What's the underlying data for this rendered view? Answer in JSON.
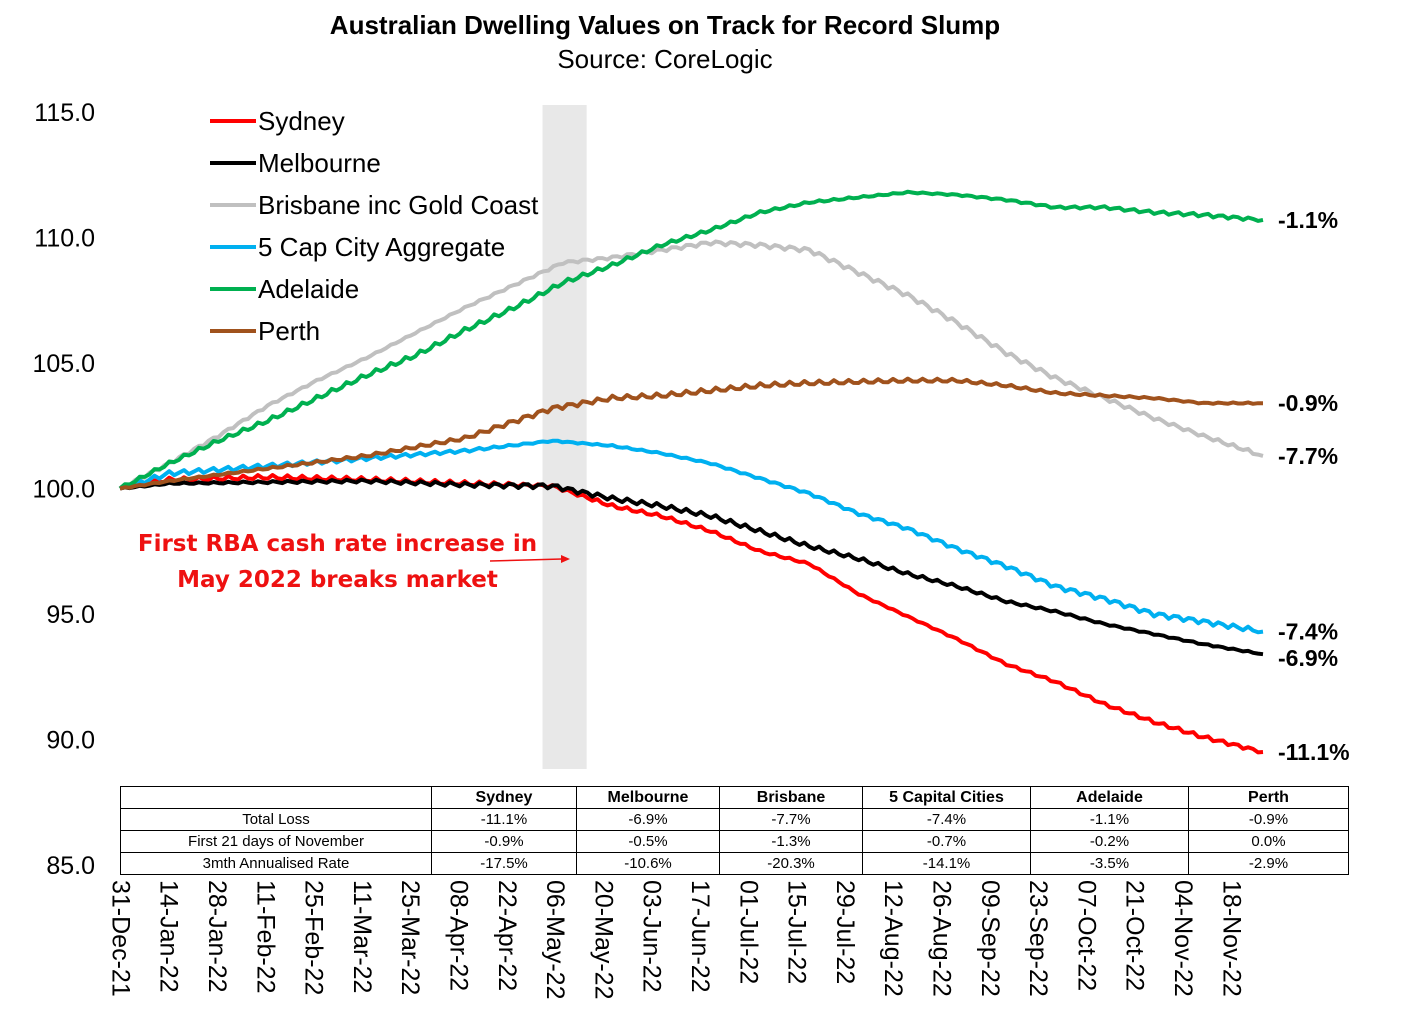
{
  "chart_data": {
    "type": "line",
    "title": "Australian Dwelling Values on Track for Record Slump",
    "subtitle": "Source: CoreLogic",
    "xlabel": "",
    "ylabel": "",
    "ylim": [
      85,
      115
    ],
    "y_ticks": [
      "115.0",
      "110.0",
      "105.0",
      "100.0",
      "95.0",
      "90.0",
      "85.0"
    ],
    "x_ticks": [
      "31-Dec-21",
      "14-Jan-22",
      "28-Jan-22",
      "11-Feb-22",
      "25-Feb-22",
      "11-Mar-22",
      "25-Mar-22",
      "08-Apr-22",
      "22-Apr-22",
      "06-May-22",
      "20-May-22",
      "03-Jun-22",
      "17-Jun-22",
      "01-Jul-22",
      "15-Jul-22",
      "29-Jul-22",
      "12-Aug-22",
      "26-Aug-22",
      "09-Sep-22",
      "23-Sep-22",
      "07-Oct-22",
      "21-Oct-22",
      "04-Nov-22",
      "18-Nov-22"
    ],
    "x_range": [
      "2021-12-31",
      "2022-11-21"
    ],
    "grid": false,
    "legend_position": "top-left",
    "shaded_period": [
      "2022-05-01",
      "2022-05-07"
    ],
    "annotation": {
      "text_lines": [
        "First RBA cash rate increase in",
        "May 2022 breaks market"
      ],
      "color": "#ee1111",
      "points_to": "2022-05-03"
    },
    "series": [
      {
        "name": "Sydney",
        "color": "#ff0000",
        "end_label": "-11.1%",
        "points": [
          [
            "2021-12-31",
            100.0
          ],
          [
            "2022-01-14",
            100.35
          ],
          [
            "2022-02-11",
            100.45
          ],
          [
            "2022-03-11",
            100.35
          ],
          [
            "2022-04-08",
            100.2
          ],
          [
            "2022-05-03",
            100.1
          ],
          [
            "2022-05-20",
            99.3
          ],
          [
            "2022-06-03",
            98.9
          ],
          [
            "2022-06-17",
            98.3
          ],
          [
            "2022-07-01",
            97.5
          ],
          [
            "2022-07-15",
            97.0
          ],
          [
            "2022-07-29",
            95.8
          ],
          [
            "2022-08-12",
            94.9
          ],
          [
            "2022-08-26",
            94.0
          ],
          [
            "2022-09-09",
            93.0
          ],
          [
            "2022-09-23",
            92.3
          ],
          [
            "2022-10-07",
            91.4
          ],
          [
            "2022-10-21",
            90.7
          ],
          [
            "2022-11-04",
            90.1
          ],
          [
            "2022-11-21",
            89.5
          ]
        ]
      },
      {
        "name": "Melbourne",
        "color": "#000000",
        "end_label": "-6.9%",
        "points": [
          [
            "2021-12-31",
            100.0
          ],
          [
            "2022-01-14",
            100.2
          ],
          [
            "2022-02-11",
            100.25
          ],
          [
            "2022-03-11",
            100.3
          ],
          [
            "2022-04-08",
            100.15
          ],
          [
            "2022-05-03",
            100.1
          ],
          [
            "2022-05-20",
            99.6
          ],
          [
            "2022-06-03",
            99.3
          ],
          [
            "2022-06-17",
            98.9
          ],
          [
            "2022-07-01",
            98.3
          ],
          [
            "2022-07-15",
            97.7
          ],
          [
            "2022-07-29",
            97.2
          ],
          [
            "2022-08-12",
            96.6
          ],
          [
            "2022-08-26",
            96.1
          ],
          [
            "2022-09-09",
            95.5
          ],
          [
            "2022-09-23",
            95.1
          ],
          [
            "2022-10-07",
            94.6
          ],
          [
            "2022-10-21",
            94.2
          ],
          [
            "2022-11-04",
            93.8
          ],
          [
            "2022-11-21",
            93.4
          ]
        ]
      },
      {
        "name": "Brisbane inc Gold Coast",
        "color": "#c0c0c0",
        "end_label": "-7.7%",
        "points": [
          [
            "2021-12-31",
            100.0
          ],
          [
            "2022-01-14",
            101.0
          ],
          [
            "2022-01-28",
            102.1
          ],
          [
            "2022-02-11",
            103.3
          ],
          [
            "2022-02-25",
            104.3
          ],
          [
            "2022-03-11",
            105.2
          ],
          [
            "2022-03-25",
            106.2
          ],
          [
            "2022-04-08",
            107.2
          ],
          [
            "2022-04-22",
            108.1
          ],
          [
            "2022-05-06",
            109.0
          ],
          [
            "2022-05-20",
            109.2
          ],
          [
            "2022-06-03",
            109.5
          ],
          [
            "2022-06-17",
            109.8
          ],
          [
            "2022-07-01",
            109.7
          ],
          [
            "2022-07-15",
            109.5
          ],
          [
            "2022-07-29",
            108.6
          ],
          [
            "2022-08-12",
            107.7
          ],
          [
            "2022-08-26",
            106.6
          ],
          [
            "2022-09-09",
            105.4
          ],
          [
            "2022-09-23",
            104.4
          ],
          [
            "2022-10-07",
            103.6
          ],
          [
            "2022-10-21",
            102.8
          ],
          [
            "2022-11-04",
            102.1
          ],
          [
            "2022-11-21",
            101.3
          ]
        ]
      },
      {
        "name": "5 Cap City Aggregate",
        "color": "#00b0f0",
        "end_label": "-7.4%",
        "points": [
          [
            "2021-12-31",
            100.0
          ],
          [
            "2022-01-14",
            100.6
          ],
          [
            "2022-02-11",
            100.9
          ],
          [
            "2022-03-11",
            101.2
          ],
          [
            "2022-04-08",
            101.5
          ],
          [
            "2022-05-03",
            101.9
          ],
          [
            "2022-05-20",
            101.7
          ],
          [
            "2022-06-03",
            101.4
          ],
          [
            "2022-06-17",
            101.0
          ],
          [
            "2022-07-01",
            100.4
          ],
          [
            "2022-07-15",
            99.8
          ],
          [
            "2022-07-29",
            99.0
          ],
          [
            "2022-08-12",
            98.4
          ],
          [
            "2022-08-26",
            97.6
          ],
          [
            "2022-09-09",
            96.9
          ],
          [
            "2022-09-23",
            96.1
          ],
          [
            "2022-10-07",
            95.6
          ],
          [
            "2022-10-21",
            95.0
          ],
          [
            "2022-11-04",
            94.7
          ],
          [
            "2022-11-21",
            94.3
          ]
        ]
      },
      {
        "name": "Adelaide",
        "color": "#00b050",
        "end_label": "-1.1%",
        "points": [
          [
            "2021-12-31",
            100.0
          ],
          [
            "2022-01-14",
            101.0
          ],
          [
            "2022-01-28",
            101.9
          ],
          [
            "2022-02-11",
            102.7
          ],
          [
            "2022-02-25",
            103.6
          ],
          [
            "2022-03-11",
            104.5
          ],
          [
            "2022-03-25",
            105.3
          ],
          [
            "2022-04-08",
            106.3
          ],
          [
            "2022-04-22",
            107.2
          ],
          [
            "2022-05-06",
            108.2
          ],
          [
            "2022-05-20",
            108.9
          ],
          [
            "2022-06-03",
            109.7
          ],
          [
            "2022-06-17",
            110.3
          ],
          [
            "2022-07-01",
            111.0
          ],
          [
            "2022-07-15",
            111.4
          ],
          [
            "2022-07-29",
            111.6
          ],
          [
            "2022-08-12",
            111.8
          ],
          [
            "2022-08-26",
            111.7
          ],
          [
            "2022-09-09",
            111.5
          ],
          [
            "2022-09-23",
            111.2
          ],
          [
            "2022-10-07",
            111.2
          ],
          [
            "2022-10-21",
            111.0
          ],
          [
            "2022-11-04",
            110.9
          ],
          [
            "2022-11-21",
            110.7
          ]
        ]
      },
      {
        "name": "Perth",
        "color": "#a0521d",
        "end_label": "-0.9%",
        "points": [
          [
            "2021-12-31",
            100.0
          ],
          [
            "2022-01-14",
            100.3
          ],
          [
            "2022-02-11",
            100.8
          ],
          [
            "2022-03-11",
            101.3
          ],
          [
            "2022-04-08",
            102.0
          ],
          [
            "2022-05-03",
            103.2
          ],
          [
            "2022-05-20",
            103.6
          ],
          [
            "2022-06-03",
            103.7
          ],
          [
            "2022-06-17",
            103.9
          ],
          [
            "2022-07-01",
            104.1
          ],
          [
            "2022-07-15",
            104.2
          ],
          [
            "2022-07-29",
            104.25
          ],
          [
            "2022-08-12",
            104.3
          ],
          [
            "2022-08-26",
            104.3
          ],
          [
            "2022-09-09",
            104.1
          ],
          [
            "2022-09-23",
            103.8
          ],
          [
            "2022-10-07",
            103.7
          ],
          [
            "2022-10-21",
            103.6
          ],
          [
            "2022-11-04",
            103.4
          ],
          [
            "2022-11-21",
            103.4
          ]
        ]
      }
    ]
  },
  "table": {
    "headers": [
      "",
      "Sydney",
      "Melbourne",
      "Brisbane",
      "5 Capital Cities",
      "Adelaide",
      "Perth"
    ],
    "rows": [
      [
        "Total Loss",
        "-11.1%",
        "-6.9%",
        "-7.7%",
        "-7.4%",
        "-1.1%",
        "-0.9%"
      ],
      [
        "First 21 days of November",
        "-0.9%",
        "-0.5%",
        "-1.3%",
        "-0.7%",
        "-0.2%",
        "0.0%"
      ],
      [
        "3mth Annualised Rate",
        "-17.5%",
        "-10.6%",
        "-20.3%",
        "-14.1%",
        "-3.5%",
        "-2.9%"
      ]
    ]
  }
}
